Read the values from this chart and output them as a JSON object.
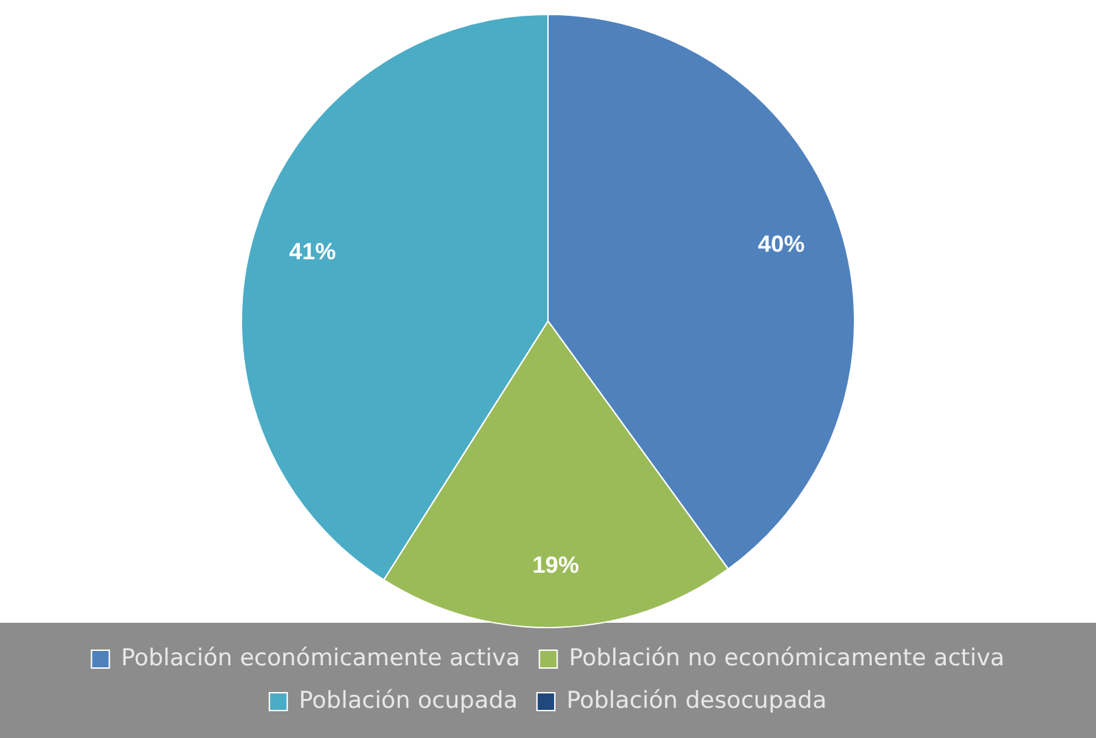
{
  "chart_data": {
    "type": "pie",
    "categories": [
      "Población económicamente activa",
      "Población no económicamente activa",
      "Población ocupada",
      "Población desocupada"
    ],
    "values": [
      40,
      19,
      41,
      0
    ],
    "colors": [
      "#4f81bd",
      "#9bbb59",
      "#4bacc6",
      "#1f497d"
    ],
    "value_labels": [
      "40%",
      "19%",
      "41%",
      null
    ],
    "legend": "bottom"
  }
}
